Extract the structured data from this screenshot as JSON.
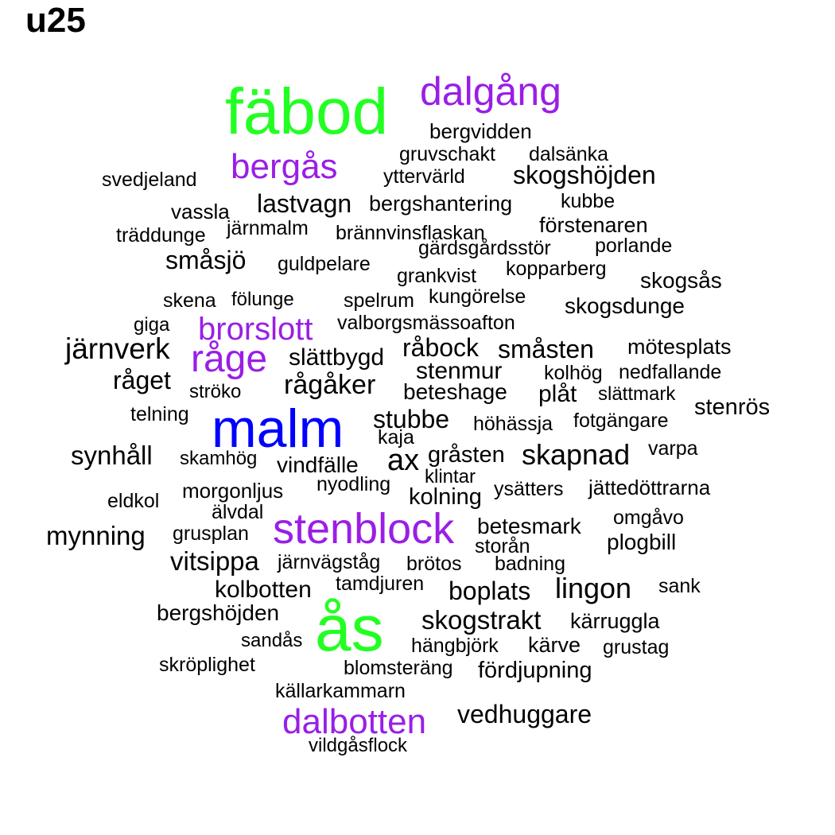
{
  "title": "u25",
  "colors": {
    "green": "#22ff22",
    "blue": "#0000ff",
    "purple": "#9a1ee6",
    "black": "#000000"
  },
  "words": [
    {
      "text": "fäbod",
      "color": "green"
    },
    {
      "text": "dalgång",
      "color": "purple"
    },
    {
      "text": "bergvidden",
      "color": "black"
    },
    {
      "text": "gruvschakt",
      "color": "black"
    },
    {
      "text": "dalsänka",
      "color": "black"
    },
    {
      "text": "bergås",
      "color": "purple"
    },
    {
      "text": "svedjeland",
      "color": "black"
    },
    {
      "text": "yttervärld",
      "color": "black"
    },
    {
      "text": "skogshöjden",
      "color": "black"
    },
    {
      "text": "lastvagn",
      "color": "black"
    },
    {
      "text": "bergshantering",
      "color": "black"
    },
    {
      "text": "kubbe",
      "color": "black"
    },
    {
      "text": "vassla",
      "color": "black"
    },
    {
      "text": "förstenaren",
      "color": "black"
    },
    {
      "text": "träddunge",
      "color": "black"
    },
    {
      "text": "järnmalm",
      "color": "black"
    },
    {
      "text": "brännvinsflaskan",
      "color": "black"
    },
    {
      "text": "porlande",
      "color": "black"
    },
    {
      "text": "gärdsgårdsstör",
      "color": "black"
    },
    {
      "text": "småsjö",
      "color": "black"
    },
    {
      "text": "guldpelare",
      "color": "black"
    },
    {
      "text": "kopparberg",
      "color": "black"
    },
    {
      "text": "grankvist",
      "color": "black"
    },
    {
      "text": "skogsås",
      "color": "black"
    },
    {
      "text": "skena",
      "color": "black"
    },
    {
      "text": "fölunge",
      "color": "black"
    },
    {
      "text": "spelrum",
      "color": "black"
    },
    {
      "text": "kungörelse",
      "color": "black"
    },
    {
      "text": "skogsdunge",
      "color": "black"
    },
    {
      "text": "giga",
      "color": "black"
    },
    {
      "text": "brorslott",
      "color": "purple"
    },
    {
      "text": "valborgsmässoafton",
      "color": "black"
    },
    {
      "text": "järnverk",
      "color": "black"
    },
    {
      "text": "råbock",
      "color": "black"
    },
    {
      "text": "småsten",
      "color": "black"
    },
    {
      "text": "mötesplats",
      "color": "black"
    },
    {
      "text": "råge",
      "color": "purple"
    },
    {
      "text": "slättbygd",
      "color": "black"
    },
    {
      "text": "stenmur",
      "color": "black"
    },
    {
      "text": "kolhög",
      "color": "black"
    },
    {
      "text": "nedfallande",
      "color": "black"
    },
    {
      "text": "råget",
      "color": "black"
    },
    {
      "text": "rågåker",
      "color": "black"
    },
    {
      "text": "beteshage",
      "color": "black"
    },
    {
      "text": "plåt",
      "color": "black"
    },
    {
      "text": "slättmark",
      "color": "black"
    },
    {
      "text": "ströko",
      "color": "black"
    },
    {
      "text": "stenrös",
      "color": "black"
    },
    {
      "text": "telning",
      "color": "black"
    },
    {
      "text": "malm",
      "color": "blue"
    },
    {
      "text": "stubbe",
      "color": "black"
    },
    {
      "text": "höhässja",
      "color": "black"
    },
    {
      "text": "fotgängare",
      "color": "black"
    },
    {
      "text": "kaja",
      "color": "black"
    },
    {
      "text": "synhåll",
      "color": "black"
    },
    {
      "text": "skamhög",
      "color": "black"
    },
    {
      "text": "vindfälle",
      "color": "black"
    },
    {
      "text": "ax",
      "color": "black"
    },
    {
      "text": "gråsten",
      "color": "black"
    },
    {
      "text": "skapnad",
      "color": "black"
    },
    {
      "text": "varpa",
      "color": "black"
    },
    {
      "text": "klintar",
      "color": "black"
    },
    {
      "text": "nyodling",
      "color": "black"
    },
    {
      "text": "ysätters",
      "color": "black"
    },
    {
      "text": "jättedöttrarna",
      "color": "black"
    },
    {
      "text": "morgonljus",
      "color": "black"
    },
    {
      "text": "kolning",
      "color": "black"
    },
    {
      "text": "eldkol",
      "color": "black"
    },
    {
      "text": "älvdal",
      "color": "black"
    },
    {
      "text": "omgåvo",
      "color": "black"
    },
    {
      "text": "stenblock",
      "color": "purple"
    },
    {
      "text": "betesmark",
      "color": "black"
    },
    {
      "text": "mynning",
      "color": "black"
    },
    {
      "text": "grusplan",
      "color": "black"
    },
    {
      "text": "plogbill",
      "color": "black"
    },
    {
      "text": "storån",
      "color": "black"
    },
    {
      "text": "vitsippa",
      "color": "black"
    },
    {
      "text": "järnvägståg",
      "color": "black"
    },
    {
      "text": "brötos",
      "color": "black"
    },
    {
      "text": "badning",
      "color": "black"
    },
    {
      "text": "tamdjuren",
      "color": "black"
    },
    {
      "text": "lingon",
      "color": "black"
    },
    {
      "text": "kolbotten",
      "color": "black"
    },
    {
      "text": "boplats",
      "color": "black"
    },
    {
      "text": "sank",
      "color": "black"
    },
    {
      "text": "bergshöjden",
      "color": "black"
    },
    {
      "text": "ås",
      "color": "green"
    },
    {
      "text": "skogstrakt",
      "color": "black"
    },
    {
      "text": "kärruggla",
      "color": "black"
    },
    {
      "text": "sandås",
      "color": "black"
    },
    {
      "text": "hängbjörk",
      "color": "black"
    },
    {
      "text": "kärve",
      "color": "black"
    },
    {
      "text": "grustag",
      "color": "black"
    },
    {
      "text": "skröplighet",
      "color": "black"
    },
    {
      "text": "blomsteräng",
      "color": "black"
    },
    {
      "text": "fördjupning",
      "color": "black"
    },
    {
      "text": "källarkammarn",
      "color": "black"
    },
    {
      "text": "dalbotten",
      "color": "purple"
    },
    {
      "text": "vedhuggare",
      "color": "black"
    },
    {
      "text": "vildgåsflock",
      "color": "black"
    }
  ]
}
